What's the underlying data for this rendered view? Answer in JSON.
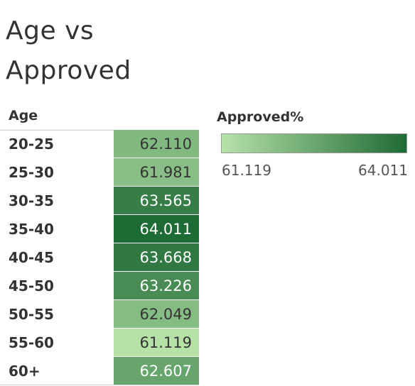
{
  "title": {
    "line1": "Age vs",
    "line2": "Approved"
  },
  "chart_data": {
    "type": "heatmap",
    "title": "Age vs Approved",
    "row_header": "Age",
    "categories": [
      "20-25",
      "25-30",
      "30-35",
      "35-40",
      "40-45",
      "45-50",
      "50-55",
      "55-60",
      "60+"
    ],
    "value_labels": [
      "62.110",
      "61.981",
      "63.565",
      "64.011",
      "63.668",
      "63.226",
      "62.049",
      "61.119",
      "62.607"
    ],
    "values": [
      62.11,
      61.981,
      63.565,
      64.011,
      63.668,
      63.226,
      62.049,
      61.119,
      62.607
    ],
    "legend": {
      "title": "Approved%",
      "min": 61.119,
      "max": 64.011,
      "min_label": "61.119",
      "max_label": "64.011",
      "color_low": "#b6e2a8",
      "color_high": "#1f6b35",
      "placement": "top-right"
    }
  }
}
